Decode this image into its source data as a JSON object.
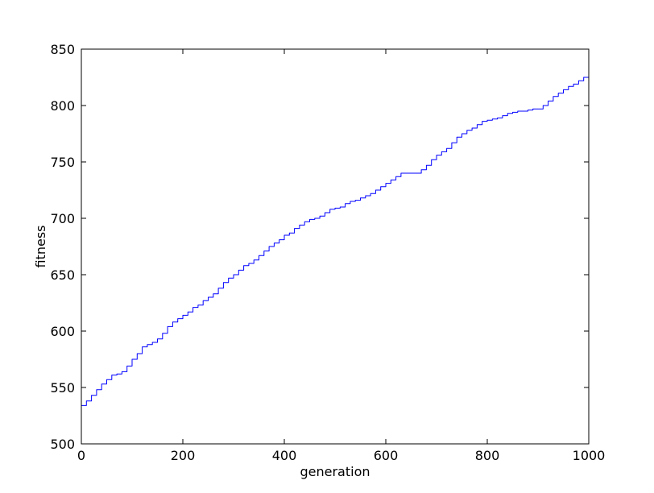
{
  "chart_data": {
    "type": "line",
    "title": "",
    "xlabel": "generation",
    "ylabel": "fitness",
    "xlim": [
      0,
      1000
    ],
    "ylim": [
      500,
      850
    ],
    "xticks": [
      0,
      200,
      400,
      600,
      800,
      1000
    ],
    "yticks": [
      500,
      550,
      600,
      650,
      700,
      750,
      800,
      850
    ],
    "grid": false,
    "legend": "none",
    "series": [
      {
        "color": "#0000ff",
        "x": [
          0,
          10,
          20,
          30,
          40,
          50,
          60,
          70,
          80,
          90,
          100,
          110,
          120,
          130,
          140,
          150,
          160,
          170,
          180,
          190,
          200,
          210,
          220,
          230,
          240,
          250,
          260,
          270,
          280,
          290,
          300,
          310,
          320,
          330,
          340,
          350,
          360,
          370,
          380,
          390,
          400,
          410,
          420,
          430,
          440,
          450,
          460,
          470,
          480,
          490,
          500,
          510,
          520,
          530,
          540,
          550,
          560,
          570,
          580,
          590,
          600,
          610,
          620,
          630,
          640,
          650,
          660,
          670,
          680,
          690,
          700,
          710,
          720,
          730,
          740,
          750,
          760,
          770,
          780,
          790,
          800,
          810,
          820,
          830,
          840,
          850,
          860,
          870,
          880,
          890,
          900,
          910,
          920,
          930,
          940,
          950,
          960,
          970,
          980,
          990,
          1000
        ],
        "y": [
          534,
          538,
          543,
          548,
          553,
          557,
          561,
          562,
          564,
          569,
          575,
          580,
          586,
          588,
          590,
          593,
          598,
          604,
          608,
          611,
          614,
          617,
          621,
          623,
          627,
          630,
          633,
          638,
          643,
          647,
          650,
          654,
          658,
          660,
          663,
          667,
          671,
          675,
          678,
          681,
          685,
          687,
          691,
          694,
          697,
          699,
          700,
          702,
          705,
          708,
          709,
          710,
          713,
          715,
          716,
          718,
          720,
          722,
          725,
          728,
          731,
          734,
          737,
          740,
          740,
          740,
          740,
          743,
          747,
          752,
          756,
          759,
          762,
          767,
          772,
          775,
          778,
          780,
          783,
          786,
          787,
          788,
          789,
          791,
          793,
          794,
          795,
          795,
          796,
          797,
          797,
          800,
          804,
          808,
          811,
          814,
          817,
          819,
          822,
          825,
          825
        ]
      }
    ]
  }
}
